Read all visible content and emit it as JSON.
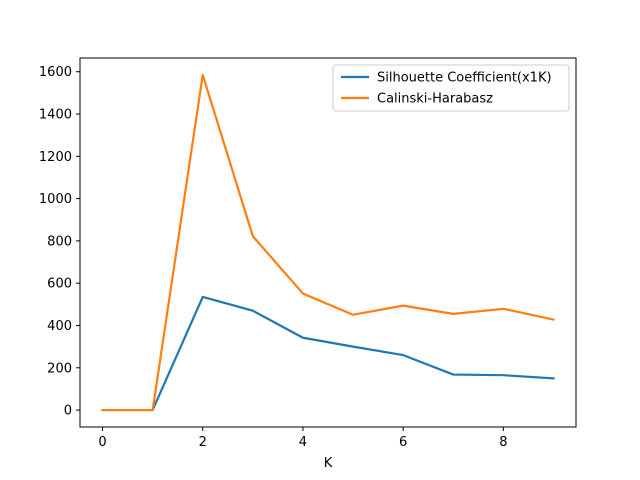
{
  "chart_data": {
    "type": "line",
    "title": "",
    "xlabel": "K",
    "ylabel": "",
    "xlim": [
      -0.45,
      9.45
    ],
    "ylim": [
      -80,
      1665
    ],
    "xticks": [
      0,
      2,
      4,
      6,
      8
    ],
    "yticks": [
      0,
      200,
      400,
      600,
      800,
      1000,
      1200,
      1400,
      1600
    ],
    "grid": false,
    "legend_position": "top-right",
    "x": [
      0,
      1,
      2,
      3,
      4,
      5,
      6,
      7,
      8,
      9
    ],
    "series": [
      {
        "name": "Silhouette Coefficient(x1K)",
        "color": "#1f77b4",
        "values": [
          0,
          0,
          535,
          470,
          342,
          300,
          260,
          168,
          165,
          150
        ]
      },
      {
        "name": "Calinski-Harabasz",
        "color": "#ff7f0e",
        "values": [
          0,
          0,
          1585,
          822,
          551,
          451,
          494,
          455,
          479,
          428
        ]
      }
    ]
  }
}
